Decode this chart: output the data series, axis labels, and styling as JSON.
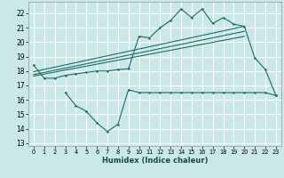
{
  "xlabel": "Humidex (Indice chaleur)",
  "bg_color": "#cbe8e8",
  "grid_color": "#ffffff",
  "line_color": "#1a6b6b",
  "xlim": [
    -0.5,
    23.5
  ],
  "ylim": [
    12.8,
    22.8
  ],
  "yticks": [
    13,
    14,
    15,
    16,
    17,
    18,
    19,
    20,
    21,
    22
  ],
  "xticks": [
    0,
    1,
    2,
    3,
    4,
    5,
    6,
    7,
    8,
    9,
    10,
    11,
    12,
    13,
    14,
    15,
    16,
    17,
    18,
    19,
    20,
    21,
    22,
    23
  ],
  "xtick_labels": [
    "0",
    "1",
    "2",
    "3",
    "4",
    "5",
    "6",
    "7",
    "8",
    "9",
    "10",
    "11",
    "12",
    "13",
    "14",
    "15",
    "16",
    "17",
    "18",
    "19",
    "20",
    "21",
    "22",
    "23"
  ],
  "main_x": [
    0,
    1,
    2,
    3,
    4,
    5,
    6,
    7,
    8,
    9,
    10,
    11,
    12,
    13,
    14,
    15,
    16,
    17,
    18,
    19,
    20,
    21,
    22,
    23
  ],
  "main_y": [
    18.4,
    17.5,
    17.5,
    17.7,
    17.8,
    17.9,
    18.0,
    18.0,
    18.1,
    18.15,
    20.4,
    20.3,
    21.0,
    21.5,
    22.3,
    21.7,
    22.3,
    21.3,
    21.7,
    21.25,
    21.1,
    18.9,
    18.1,
    16.3
  ],
  "lower_x": [
    3,
    4,
    5,
    6,
    7,
    8,
    9,
    10,
    11,
    12,
    13,
    14,
    15,
    16,
    17,
    18,
    19,
    20,
    21,
    22,
    23
  ],
  "lower_y": [
    16.5,
    15.6,
    15.2,
    14.4,
    13.8,
    14.3,
    16.7,
    16.5,
    16.5,
    16.5,
    16.5,
    16.5,
    16.5,
    16.5,
    16.5,
    16.5,
    16.5,
    16.5,
    16.5,
    16.5,
    16.3
  ],
  "trend1_x": [
    0,
    20
  ],
  "trend1_y": [
    17.95,
    21.1
  ],
  "trend2_x": [
    0,
    20
  ],
  "trend2_y": [
    17.75,
    20.75
  ],
  "trend3_x": [
    0,
    20
  ],
  "trend3_y": [
    17.65,
    20.4
  ]
}
